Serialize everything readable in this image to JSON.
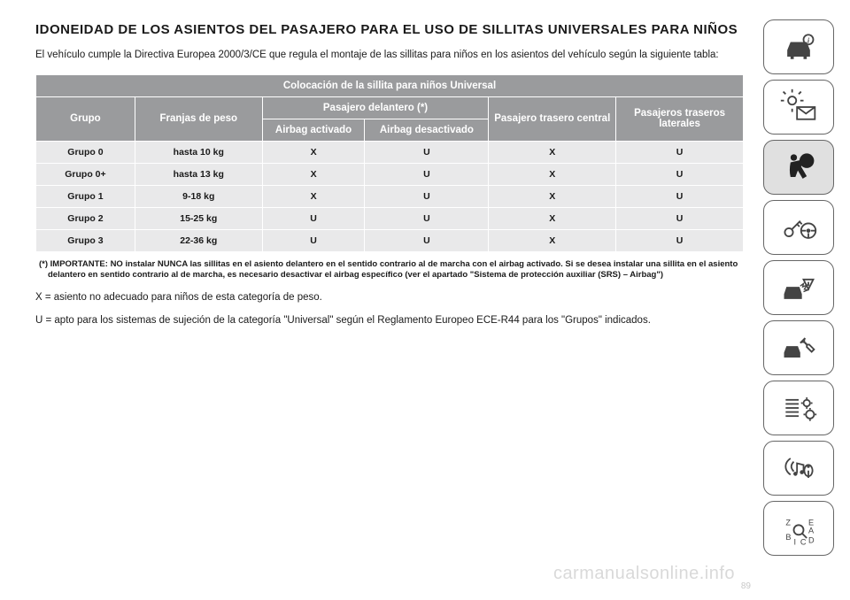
{
  "title": "IDONEIDAD DE LOS ASIENTOS DEL PASAJERO PARA EL USO DE SILLITAS UNIVERSALES PARA NIÑOS",
  "intro": "El vehículo cumple la Directiva Europea 2000/3/CE que regula el montaje de las sillitas para niños en los asientos del vehículo según la siguiente tabla:",
  "table": {
    "header_top": "Colocación de la sillita para niños Universal",
    "col_grupo": "Grupo",
    "col_franjas": "Franjas de peso",
    "col_delantero": "Pasajero delantero (*)",
    "col_airbag_on": "Airbag activado",
    "col_airbag_off": "Airbag desactivado",
    "col_trasero_central": "Pasajero trasero central",
    "col_traseros_laterales": "Pasajeros traseros laterales",
    "rows": [
      {
        "grupo": "Grupo 0",
        "peso": "hasta 10 kg",
        "a": "X",
        "b": "U",
        "c": "X",
        "d": "U"
      },
      {
        "grupo": "Grupo 0+",
        "peso": "hasta 13 kg",
        "a": "X",
        "b": "U",
        "c": "X",
        "d": "U"
      },
      {
        "grupo": "Grupo 1",
        "peso": "9-18 kg",
        "a": "X",
        "b": "U",
        "c": "X",
        "d": "U"
      },
      {
        "grupo": "Grupo 2",
        "peso": "15-25 kg",
        "a": "U",
        "b": "U",
        "c": "X",
        "d": "U"
      },
      {
        "grupo": "Grupo 3",
        "peso": "22-36 kg",
        "a": "U",
        "b": "U",
        "c": "X",
        "d": "U"
      }
    ]
  },
  "footnote": "(*) IMPORTANTE: NO instalar NUNCA las sillitas en el asiento delantero en el sentido contrario al de marcha con el airbag activado. Si se desea instalar una sillita en el asiento delantero en sentido contrario al de marcha, es necesario desactivar el airbag específico (ver el apartado \"Sistema de protección auxiliar (SRS) – Airbag\")",
  "legend_x": "X = asiento no adecuado para niños de esta categoría de peso.",
  "legend_u": "U = apto para los sistemas de sujeción de la categoría \"Universal\" según el Reglamento Europeo ECE-R44 para los \"Grupos\" indicados.",
  "watermark": "carmanualsonline.info",
  "page_number": "89",
  "sidebar": {
    "items": [
      {
        "name": "vehicle-info-icon"
      },
      {
        "name": "lights-message-icon"
      },
      {
        "name": "airbag-icon",
        "active": true
      },
      {
        "name": "key-steering-icon"
      },
      {
        "name": "crash-warning-icon"
      },
      {
        "name": "service-tools-icon"
      },
      {
        "name": "settings-icon"
      },
      {
        "name": "media-location-icon"
      },
      {
        "name": "alphabet-index-icon"
      }
    ]
  },
  "colors": {
    "header_bg": "#9a9b9d",
    "header_fg": "#ffffff",
    "row_bg": "#e9e9ea",
    "text": "#1a1a1a",
    "active_side": "#e0e0e0",
    "watermark": "#d9d9d9"
  }
}
